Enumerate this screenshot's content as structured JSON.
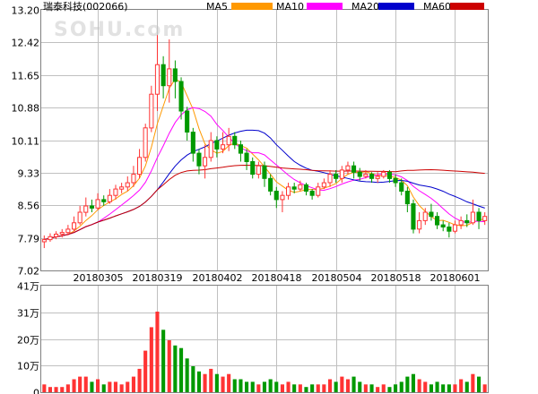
{
  "header": {
    "stock_name": "瑞泰科技",
    "stock_code": "(002066)",
    "watermark": "SOHU.com"
  },
  "legend": [
    {
      "label": "MA5",
      "color": "#ff9900"
    },
    {
      "label": "MA10",
      "color": "#ff00ff"
    },
    {
      "label": "MA20",
      "color": "#0000cc"
    },
    {
      "label": "MA60",
      "color": "#cc0000"
    }
  ],
  "colors": {
    "up": "#ff3333",
    "down": "#009900",
    "grid": "#c0c0c0",
    "border": "#808080"
  },
  "chart_data": {
    "type": "candlestick",
    "price_axis": {
      "ticks": [
        "13.20",
        "12.42",
        "11.65",
        "10.88",
        "10.11",
        "9.33",
        "8.56",
        "7.79",
        "7.02"
      ],
      "min": 7.02,
      "max": 13.2
    },
    "volume_axis": {
      "ticks": [
        "41万",
        "31万",
        "20万",
        "10万",
        "0"
      ],
      "max_wan": 41
    },
    "date_labels": [
      {
        "label": "20180305",
        "index": 9
      },
      {
        "label": "20180319",
        "index": 19
      },
      {
        "label": "20180402",
        "index": 29
      },
      {
        "label": "20180418",
        "index": 39
      },
      {
        "label": "20180504",
        "index": 49
      },
      {
        "label": "20180518",
        "index": 59
      },
      {
        "label": "20180601",
        "index": 69
      }
    ],
    "candles": [
      [
        7.7,
        7.75,
        7.55,
        7.85,
        3
      ],
      [
        7.75,
        7.82,
        7.7,
        7.9,
        2
      ],
      [
        7.82,
        7.88,
        7.76,
        7.95,
        2
      ],
      [
        7.88,
        7.92,
        7.8,
        8.0,
        2
      ],
      [
        7.92,
        8.0,
        7.85,
        8.1,
        3
      ],
      [
        8.0,
        8.15,
        7.95,
        8.3,
        5
      ],
      [
        8.15,
        8.4,
        8.1,
        8.55,
        6
      ],
      [
        8.4,
        8.55,
        8.3,
        8.75,
        6
      ],
      [
        8.55,
        8.5,
        8.4,
        8.7,
        4
      ],
      [
        8.5,
        8.7,
        8.45,
        8.85,
        5
      ],
      [
        8.7,
        8.65,
        8.55,
        8.8,
        3
      ],
      [
        8.65,
        8.8,
        8.6,
        8.95,
        4
      ],
      [
        8.8,
        8.95,
        8.7,
        9.05,
        4
      ],
      [
        8.95,
        9.0,
        8.85,
        9.1,
        3
      ],
      [
        9.0,
        9.1,
        8.9,
        9.25,
        4
      ],
      [
        9.1,
        9.3,
        9.0,
        9.5,
        6
      ],
      [
        9.3,
        9.7,
        9.2,
        9.9,
        9
      ],
      [
        9.7,
        10.4,
        9.6,
        10.5,
        16
      ],
      [
        10.4,
        11.2,
        10.3,
        11.4,
        25
      ],
      [
        11.2,
        11.9,
        10.8,
        12.6,
        31
      ],
      [
        11.9,
        11.4,
        11.1,
        12.1,
        24
      ],
      [
        11.4,
        11.8,
        11.0,
        12.5,
        20
      ],
      [
        11.8,
        11.5,
        11.1,
        12.0,
        18
      ],
      [
        11.5,
        10.8,
        10.6,
        11.6,
        17
      ],
      [
        10.8,
        10.3,
        10.1,
        10.9,
        13
      ],
      [
        10.3,
        9.8,
        9.6,
        10.4,
        10
      ],
      [
        9.8,
        9.5,
        9.3,
        9.9,
        8
      ],
      [
        9.5,
        9.7,
        9.2,
        10.0,
        7
      ],
      [
        9.7,
        10.1,
        9.6,
        10.3,
        9
      ],
      [
        10.1,
        9.9,
        9.7,
        10.2,
        7
      ],
      [
        9.9,
        10.0,
        9.8,
        10.3,
        6
      ],
      [
        10.0,
        10.2,
        9.85,
        10.4,
        7
      ],
      [
        10.2,
        10.0,
        9.9,
        10.3,
        5
      ],
      [
        10.0,
        9.8,
        9.6,
        10.1,
        5
      ],
      [
        9.8,
        9.6,
        9.4,
        9.9,
        4
      ],
      [
        9.6,
        9.3,
        9.2,
        9.7,
        4
      ],
      [
        9.3,
        9.5,
        9.2,
        9.6,
        3
      ],
      [
        9.5,
        9.2,
        9.0,
        9.6,
        4
      ],
      [
        9.2,
        8.9,
        8.8,
        9.3,
        5
      ],
      [
        8.9,
        8.7,
        8.5,
        9.0,
        4
      ],
      [
        8.7,
        8.8,
        8.4,
        8.9,
        3
      ],
      [
        8.8,
        9.0,
        8.7,
        9.1,
        4
      ],
      [
        9.0,
        8.95,
        8.85,
        9.1,
        3
      ],
      [
        8.95,
        9.05,
        8.9,
        9.15,
        3
      ],
      [
        9.05,
        8.9,
        8.8,
        9.1,
        2
      ],
      [
        8.9,
        8.8,
        8.7,
        8.95,
        3
      ],
      [
        8.8,
        9.0,
        8.75,
        9.1,
        3
      ],
      [
        9.0,
        9.1,
        8.95,
        9.2,
        3
      ],
      [
        9.1,
        9.3,
        9.0,
        9.4,
        5
      ],
      [
        9.3,
        9.2,
        9.1,
        9.4,
        4
      ],
      [
        9.2,
        9.4,
        9.1,
        9.5,
        6
      ],
      [
        9.4,
        9.5,
        9.3,
        9.6,
        5
      ],
      [
        9.5,
        9.35,
        9.2,
        9.6,
        6
      ],
      [
        9.35,
        9.25,
        9.15,
        9.45,
        4
      ],
      [
        9.25,
        9.3,
        9.2,
        9.4,
        3
      ],
      [
        9.3,
        9.2,
        9.1,
        9.35,
        3
      ],
      [
        9.2,
        9.25,
        9.1,
        9.35,
        2
      ],
      [
        9.25,
        9.35,
        9.2,
        9.4,
        3
      ],
      [
        9.35,
        9.2,
        9.1,
        9.4,
        2
      ],
      [
        9.2,
        9.1,
        9.0,
        9.3,
        3
      ],
      [
        9.1,
        8.9,
        8.8,
        9.2,
        4
      ],
      [
        8.9,
        8.6,
        8.4,
        9.0,
        6
      ],
      [
        8.6,
        8.0,
        7.9,
        8.7,
        7
      ],
      [
        8.0,
        8.2,
        7.9,
        8.4,
        5
      ],
      [
        8.2,
        8.4,
        8.1,
        8.5,
        4
      ],
      [
        8.4,
        8.3,
        8.2,
        8.6,
        3
      ],
      [
        8.3,
        8.1,
        8.0,
        8.4,
        4
      ],
      [
        8.1,
        8.05,
        7.95,
        8.2,
        3
      ],
      [
        8.05,
        7.95,
        7.8,
        8.15,
        3
      ],
      [
        7.95,
        8.1,
        7.9,
        8.2,
        3
      ],
      [
        8.1,
        8.2,
        8.0,
        8.3,
        5
      ],
      [
        8.2,
        8.15,
        8.05,
        8.35,
        4
      ],
      [
        8.15,
        8.4,
        8.1,
        8.7,
        7
      ],
      [
        8.4,
        8.2,
        8.0,
        8.5,
        6
      ],
      [
        8.2,
        8.3,
        8.1,
        8.4,
        3
      ]
    ]
  }
}
